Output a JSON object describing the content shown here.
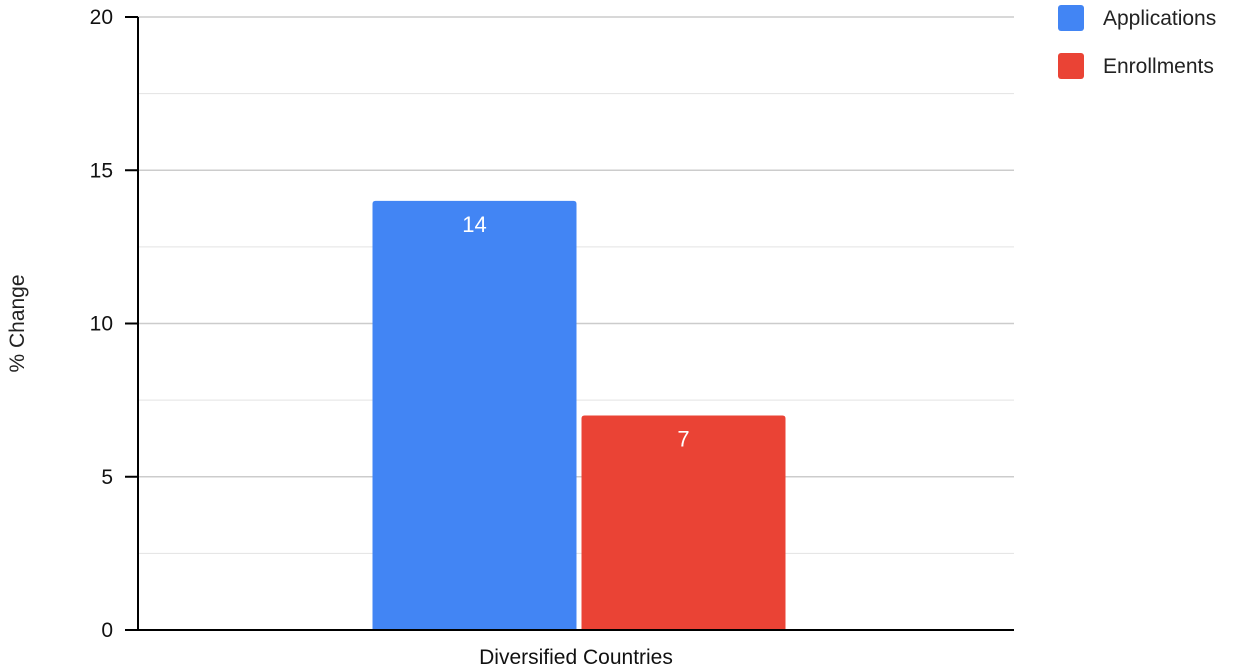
{
  "chart_data": {
    "type": "bar",
    "categories": [
      "Diversified Countries"
    ],
    "series": [
      {
        "name": "Applications",
        "values": [
          14
        ],
        "color": "#4285f4"
      },
      {
        "name": "Enrollments",
        "values": [
          7
        ],
        "color": "#ea4335"
      }
    ],
    "title": "",
    "xlabel": "",
    "ylabel": "% Change",
    "ylim": [
      0,
      20
    ],
    "yticks": [
      0,
      5,
      10,
      15,
      20
    ],
    "minor_gridlines": true,
    "grid": true,
    "legend_position": "top-right",
    "data_labels": [
      "14",
      "7"
    ],
    "colors": {
      "gridline": "#cccccc",
      "axis": "#000000",
      "data_label": "#ffffff"
    }
  }
}
